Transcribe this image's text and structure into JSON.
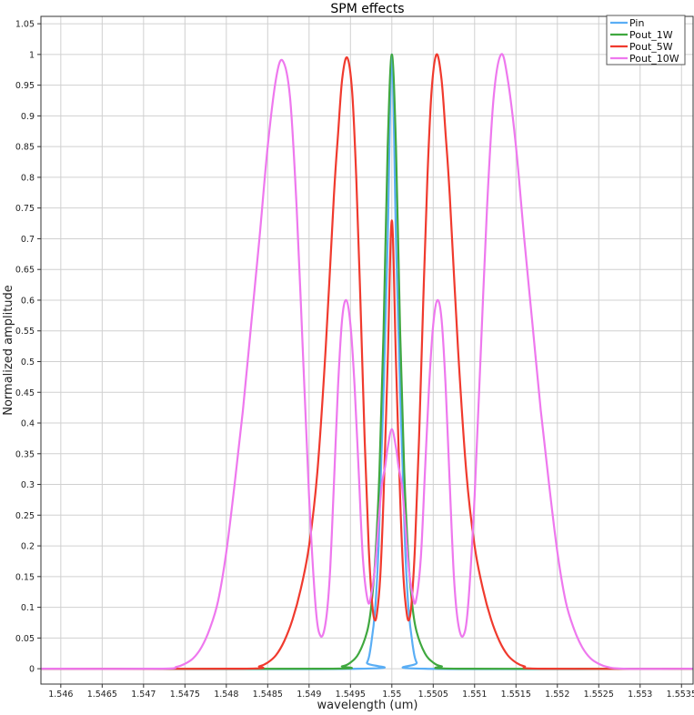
{
  "chart_data": {
    "type": "line",
    "title": "SPM effects",
    "xlabel": "wavelength (um)",
    "ylabel": "Normalized amplitude",
    "xlim": [
      1.54576,
      1.55364
    ],
    "ylim": [
      -0.025,
      1.062
    ],
    "grid": true,
    "legend_position": "top-right",
    "xticks": [
      1.546,
      1.5465,
      1.547,
      1.5475,
      1.548,
      1.5485,
      1.549,
      1.5495,
      1.55,
      1.5505,
      1.551,
      1.5515,
      1.552,
      1.5525,
      1.553,
      1.5535
    ],
    "xtick_labels": [
      "1.546",
      "1.5465",
      "1.547",
      "1.5475",
      "1.548",
      "1.5485",
      "1.549",
      "1.5495",
      "1.55",
      "1.5505",
      "1.551",
      "1.5515",
      "1.552",
      "1.5525",
      "1.553",
      "1.5535"
    ],
    "yticks": [
      0,
      0.05,
      0.1,
      0.15,
      0.2,
      0.25,
      0.3,
      0.35,
      0.4,
      0.45,
      0.5,
      0.55,
      0.6,
      0.65,
      0.7,
      0.75,
      0.8,
      0.85,
      0.9,
      0.95,
      1,
      1.05
    ],
    "ytick_labels": [
      "0",
      "0.05",
      "0.1",
      "0.15",
      "0.2",
      "0.25",
      "0.3",
      "0.35",
      "0.4",
      "0.45",
      "0.5",
      "0.55",
      "0.6",
      "0.65",
      "0.7",
      "0.75",
      "0.8",
      "0.85",
      "0.9",
      "0.95",
      "1",
      "1.05"
    ],
    "series": [
      {
        "name": "Pin",
        "color": "#5aaef5",
        "points": [
          [
            1.54576,
            0
          ],
          [
            1.5496,
            0
          ],
          [
            1.5497,
            0.01
          ],
          [
            1.54975,
            0.04
          ],
          [
            1.5498,
            0.1
          ],
          [
            1.54984,
            0.2
          ],
          [
            1.54987,
            0.33
          ],
          [
            1.5499,
            0.45
          ],
          [
            1.54995,
            0.7
          ],
          [
            1.55,
            1
          ],
          [
            1.55005,
            0.7
          ],
          [
            1.5501,
            0.45
          ],
          [
            1.55013,
            0.33
          ],
          [
            1.55016,
            0.2
          ],
          [
            1.5502,
            0.1
          ],
          [
            1.55025,
            0.04
          ],
          [
            1.5503,
            0.01
          ],
          [
            1.5504,
            0
          ],
          [
            1.55364,
            0
          ]
        ]
      },
      {
        "name": "Pout_1W",
        "color": "#3fa83f",
        "points": [
          [
            1.54576,
            0
          ],
          [
            1.5492,
            0
          ],
          [
            1.5494,
            0.004
          ],
          [
            1.5495,
            0.01
          ],
          [
            1.5496,
            0.025
          ],
          [
            1.5497,
            0.06
          ],
          [
            1.54975,
            0.1
          ],
          [
            1.5498,
            0.18
          ],
          [
            1.54985,
            0.32
          ],
          [
            1.5499,
            0.55
          ],
          [
            1.54995,
            0.85
          ],
          [
            1.55,
            1
          ],
          [
            1.55005,
            0.85
          ],
          [
            1.5501,
            0.55
          ],
          [
            1.55015,
            0.32
          ],
          [
            1.5502,
            0.18
          ],
          [
            1.55025,
            0.1
          ],
          [
            1.5503,
            0.06
          ],
          [
            1.5504,
            0.025
          ],
          [
            1.5505,
            0.01
          ],
          [
            1.5506,
            0.004
          ],
          [
            1.5508,
            0
          ],
          [
            1.55364,
            0
          ]
        ]
      },
      {
        "name": "Pout_5W",
        "color": "#f03a2e",
        "points": [
          [
            1.54576,
            0
          ],
          [
            1.5482,
            0
          ],
          [
            1.5484,
            0.004
          ],
          [
            1.5485,
            0.01
          ],
          [
            1.5486,
            0.022
          ],
          [
            1.5487,
            0.045
          ],
          [
            1.5488,
            0.08
          ],
          [
            1.5489,
            0.13
          ],
          [
            1.549,
            0.2
          ],
          [
            1.5491,
            0.32
          ],
          [
            1.5492,
            0.52
          ],
          [
            1.5493,
            0.77
          ],
          [
            1.54935,
            0.87
          ],
          [
            1.5494,
            0.96
          ],
          [
            1.54946,
            0.995
          ],
          [
            1.54952,
            0.94
          ],
          [
            1.54957,
            0.8
          ],
          [
            1.54962,
            0.6
          ],
          [
            1.54967,
            0.38
          ],
          [
            1.54972,
            0.2
          ],
          [
            1.54976,
            0.11
          ],
          [
            1.54979,
            0.08
          ],
          [
            1.54982,
            0.09
          ],
          [
            1.54986,
            0.15
          ],
          [
            1.5499,
            0.28
          ],
          [
            1.54995,
            0.5
          ],
          [
            1.55,
            0.73
          ],
          [
            1.55005,
            0.5
          ],
          [
            1.5501,
            0.28
          ],
          [
            1.55014,
            0.15
          ],
          [
            1.55018,
            0.09
          ],
          [
            1.55021,
            0.08
          ],
          [
            1.55024,
            0.11
          ],
          [
            1.55028,
            0.2
          ],
          [
            1.55033,
            0.38
          ],
          [
            1.55038,
            0.6
          ],
          [
            1.55043,
            0.8
          ],
          [
            1.55048,
            0.94
          ],
          [
            1.55054,
            1
          ],
          [
            1.5506,
            0.96
          ],
          [
            1.55065,
            0.87
          ],
          [
            1.5507,
            0.77
          ],
          [
            1.5508,
            0.52
          ],
          [
            1.5509,
            0.32
          ],
          [
            1.551,
            0.2
          ],
          [
            1.5511,
            0.13
          ],
          [
            1.5512,
            0.08
          ],
          [
            1.5513,
            0.045
          ],
          [
            1.5514,
            0.022
          ],
          [
            1.5515,
            0.01
          ],
          [
            1.5516,
            0.004
          ],
          [
            1.5518,
            0
          ],
          [
            1.55364,
            0
          ]
        ]
      },
      {
        "name": "Pout_10W",
        "color": "#ee78ee",
        "points": [
          [
            1.54576,
            0
          ],
          [
            1.5472,
            0
          ],
          [
            1.5474,
            0.003
          ],
          [
            1.5475,
            0.008
          ],
          [
            1.5476,
            0.017
          ],
          [
            1.5477,
            0.035
          ],
          [
            1.5478,
            0.065
          ],
          [
            1.5479,
            0.11
          ],
          [
            1.548,
            0.19
          ],
          [
            1.5481,
            0.3
          ],
          [
            1.5482,
            0.42
          ],
          [
            1.5483,
            0.56
          ],
          [
            1.5484,
            0.7
          ],
          [
            1.5485,
            0.85
          ],
          [
            1.5486,
            0.96
          ],
          [
            1.54868,
            0.99
          ],
          [
            1.54877,
            0.93
          ],
          [
            1.54885,
            0.75
          ],
          [
            1.54893,
            0.5
          ],
          [
            1.549,
            0.28
          ],
          [
            1.54908,
            0.1
          ],
          [
            1.54914,
            0.053
          ],
          [
            1.5492,
            0.075
          ],
          [
            1.54925,
            0.15
          ],
          [
            1.5493,
            0.3
          ],
          [
            1.54935,
            0.46
          ],
          [
            1.5494,
            0.57
          ],
          [
            1.54945,
            0.6
          ],
          [
            1.5495,
            0.56
          ],
          [
            1.54955,
            0.46
          ],
          [
            1.5496,
            0.32
          ],
          [
            1.54965,
            0.18
          ],
          [
            1.54971,
            0.11
          ],
          [
            1.54975,
            0.12
          ],
          [
            1.5498,
            0.17
          ],
          [
            1.54984,
            0.24
          ],
          [
            1.54988,
            0.3
          ],
          [
            1.54992,
            0.33
          ],
          [
            1.54995,
            0.36
          ],
          [
            1.55,
            0.39
          ],
          [
            1.55005,
            0.36
          ],
          [
            1.55008,
            0.33
          ],
          [
            1.55012,
            0.3
          ],
          [
            1.55016,
            0.24
          ],
          [
            1.5502,
            0.17
          ],
          [
            1.55025,
            0.12
          ],
          [
            1.55029,
            0.11
          ],
          [
            1.55035,
            0.18
          ],
          [
            1.5504,
            0.32
          ],
          [
            1.55045,
            0.46
          ],
          [
            1.5505,
            0.56
          ],
          [
            1.55055,
            0.6
          ],
          [
            1.5506,
            0.57
          ],
          [
            1.55065,
            0.46
          ],
          [
            1.5507,
            0.3
          ],
          [
            1.55075,
            0.15
          ],
          [
            1.5508,
            0.075
          ],
          [
            1.55086,
            0.053
          ],
          [
            1.55092,
            0.1
          ],
          [
            1.551,
            0.28
          ],
          [
            1.55107,
            0.5
          ],
          [
            1.55115,
            0.75
          ],
          [
            1.55123,
            0.93
          ],
          [
            1.55132,
            1
          ],
          [
            1.5514,
            0.96
          ],
          [
            1.5515,
            0.85
          ],
          [
            1.5516,
            0.7
          ],
          [
            1.5517,
            0.56
          ],
          [
            1.5518,
            0.42
          ],
          [
            1.5519,
            0.3
          ],
          [
            1.552,
            0.19
          ],
          [
            1.5521,
            0.11
          ],
          [
            1.5522,
            0.065
          ],
          [
            1.5523,
            0.035
          ],
          [
            1.5524,
            0.017
          ],
          [
            1.5525,
            0.008
          ],
          [
            1.5526,
            0.003
          ],
          [
            1.5528,
            0
          ],
          [
            1.55364,
            0
          ]
        ]
      }
    ]
  }
}
